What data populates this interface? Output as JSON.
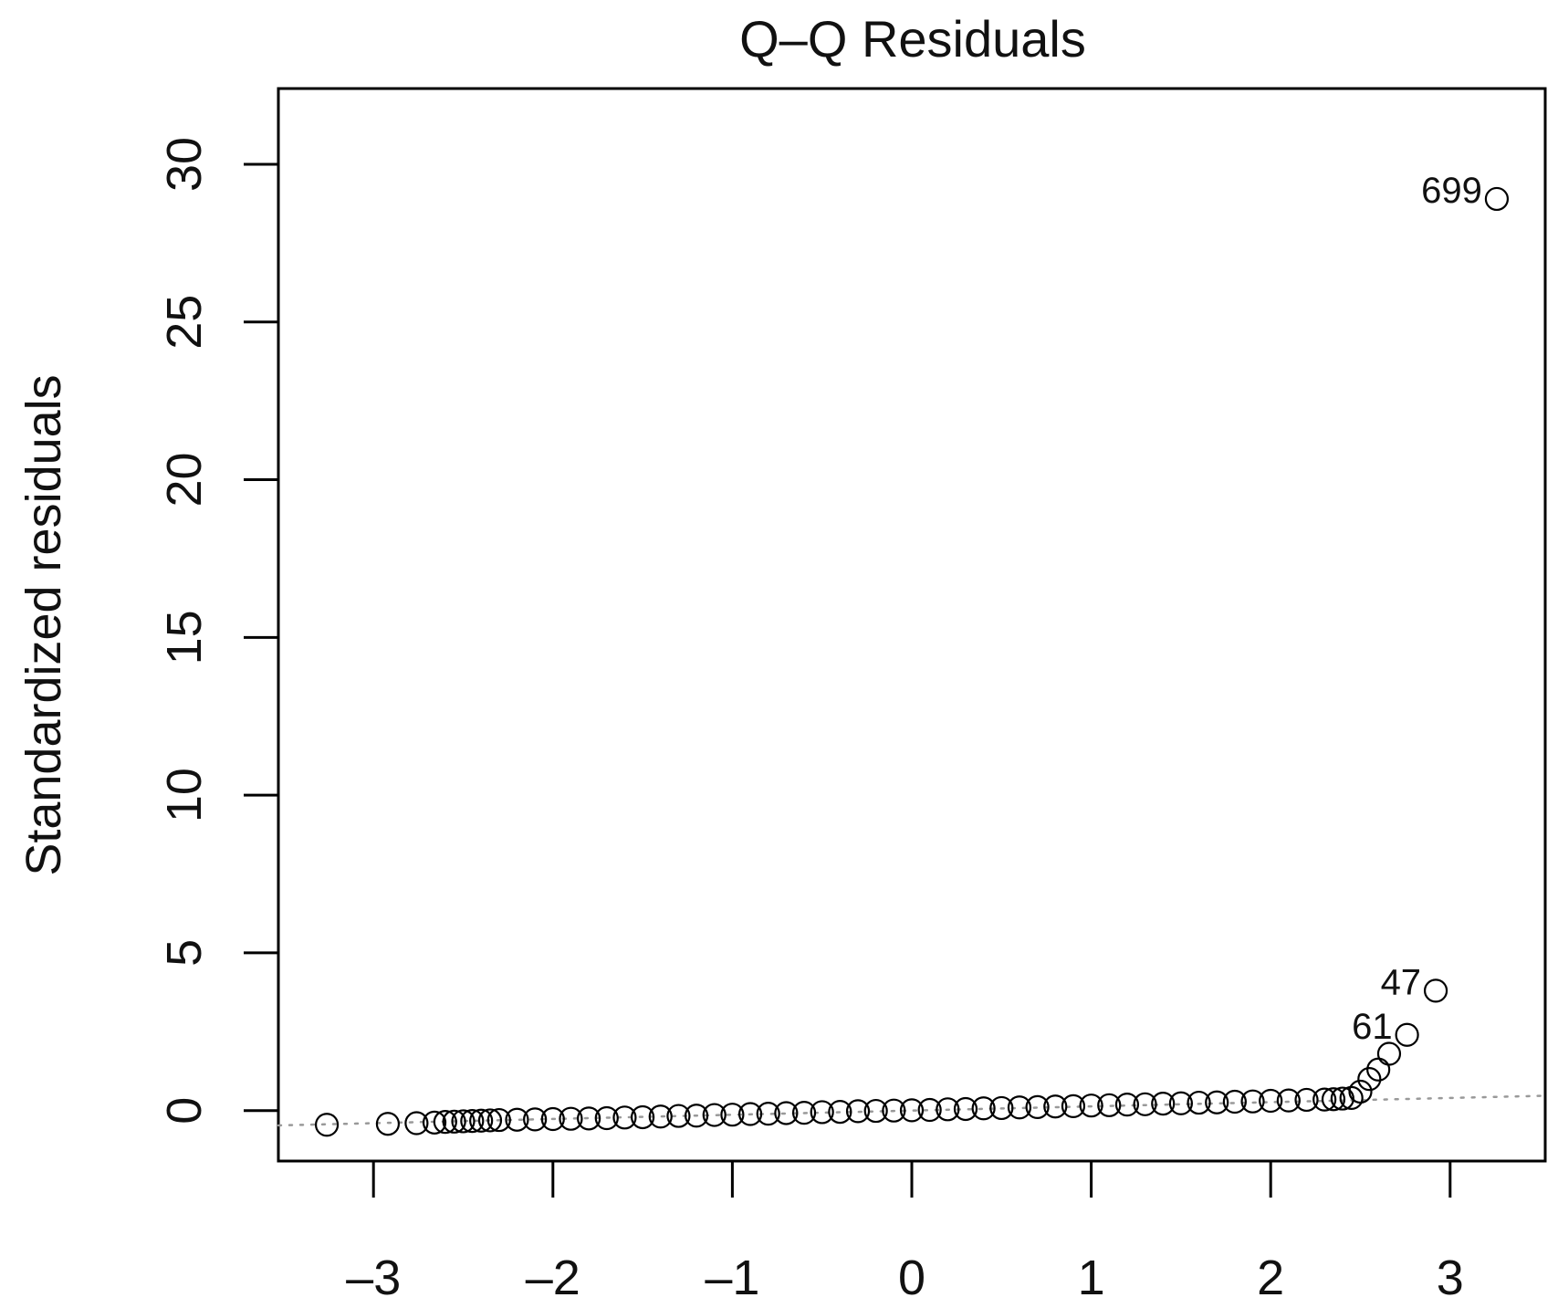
{
  "chart_data": {
    "type": "scatter",
    "title": "Q–Q Residuals",
    "xlabel": "",
    "ylabel": "Standardized residuals",
    "xlim": [
      -3.53,
      3.53
    ],
    "ylim": [
      -1.6,
      32.4
    ],
    "x_ticks": [
      -3,
      -2,
      -1,
      0,
      1,
      2,
      3
    ],
    "x_tick_labels": [
      "–3",
      "–2",
      "–1",
      "0",
      "1",
      "2",
      "3"
    ],
    "y_ticks": [
      0,
      5,
      10,
      15,
      20,
      25,
      30
    ],
    "y_tick_labels": [
      "0",
      "5",
      "10",
      "15",
      "20",
      "25",
      "30"
    ],
    "grid": false,
    "reference_line": {
      "style": "dotted",
      "color": "#999999",
      "from": [
        -3.53,
        -0.47
      ],
      "to": [
        3.53,
        0.47
      ]
    },
    "series": [
      {
        "marker": "open-circle",
        "x": [
          -3.26,
          -2.92,
          -2.76,
          -2.66,
          -2.6,
          -2.55,
          -2.5,
          -2.45,
          -2.4,
          -2.35,
          -2.3,
          -2.2,
          -2.1,
          -2.0,
          -1.9,
          -1.8,
          -1.7,
          -1.6,
          -1.5,
          -1.4,
          -1.3,
          -1.2,
          -1.1,
          -1.0,
          -0.9,
          -0.8,
          -0.7,
          -0.6,
          -0.5,
          -0.4,
          -0.3,
          -0.2,
          -0.1,
          0.0,
          0.1,
          0.2,
          0.3,
          0.4,
          0.5,
          0.6,
          0.7,
          0.8,
          0.9,
          1.0,
          1.1,
          1.2,
          1.3,
          1.4,
          1.5,
          1.6,
          1.7,
          1.8,
          1.9,
          2.0,
          2.1,
          2.2,
          2.3,
          2.35,
          2.4,
          2.45,
          2.5,
          2.55,
          2.6,
          2.66,
          2.76,
          2.92,
          3.26
        ],
        "y": [
          -0.45,
          -0.42,
          -0.4,
          -0.38,
          -0.36,
          -0.35,
          -0.34,
          -0.33,
          -0.32,
          -0.31,
          -0.3,
          -0.29,
          -0.28,
          -0.27,
          -0.26,
          -0.25,
          -0.24,
          -0.22,
          -0.21,
          -0.19,
          -0.17,
          -0.16,
          -0.14,
          -0.13,
          -0.11,
          -0.1,
          -0.08,
          -0.07,
          -0.05,
          -0.04,
          -0.02,
          -0.01,
          0.0,
          0.01,
          0.02,
          0.04,
          0.05,
          0.07,
          0.08,
          0.1,
          0.11,
          0.13,
          0.14,
          0.16,
          0.17,
          0.19,
          0.2,
          0.22,
          0.23,
          0.25,
          0.26,
          0.28,
          0.29,
          0.31,
          0.32,
          0.34,
          0.35,
          0.36,
          0.38,
          0.4,
          0.6,
          1.0,
          1.3,
          1.8,
          2.4,
          3.8,
          28.9
        ]
      }
    ],
    "annotations": [
      {
        "text": "699",
        "x": 3.26,
        "y": 28.9
      },
      {
        "text": "47",
        "x": 2.92,
        "y": 3.8
      },
      {
        "text": "61",
        "x": 2.76,
        "y": 2.4
      }
    ]
  }
}
